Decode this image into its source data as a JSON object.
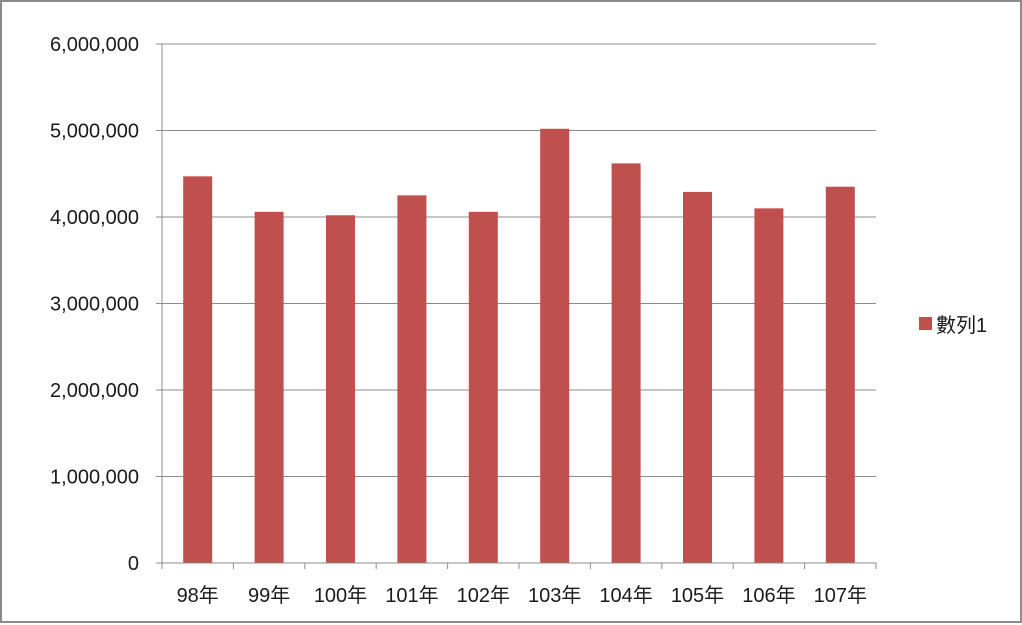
{
  "chart_data": {
    "type": "bar",
    "categories": [
      "98年",
      "99年",
      "100年",
      "101年",
      "102年",
      "103年",
      "104年",
      "105年",
      "106年",
      "107年"
    ],
    "series": [
      {
        "name": "數列1",
        "color": "#c0504d",
        "values": [
          4470000,
          4060000,
          4020000,
          4250000,
          4060000,
          5020000,
          4620000,
          4290000,
          4100000,
          4350000
        ]
      }
    ],
    "ylim": [
      0,
      6000000
    ],
    "yticks": [
      0,
      1000000,
      2000000,
      3000000,
      4000000,
      5000000,
      6000000
    ],
    "ytick_labels": [
      "0",
      "1,000,000",
      "2,000,000",
      "3,000,000",
      "4,000,000",
      "5,000,000",
      "6,000,000"
    ],
    "grid": true,
    "legend_position": "right",
    "title": "",
    "xlabel": "",
    "ylabel": ""
  }
}
